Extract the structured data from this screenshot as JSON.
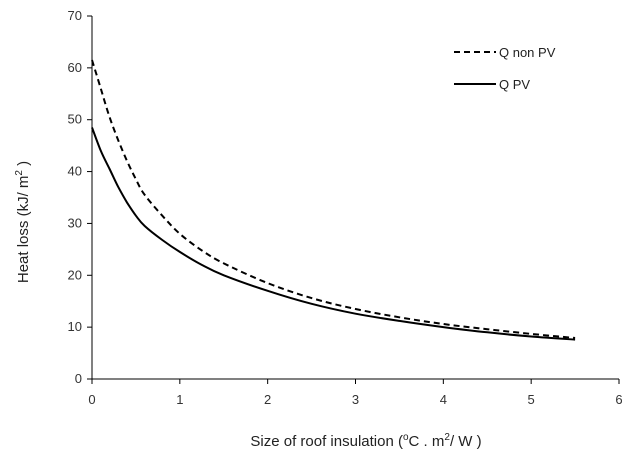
{
  "chart_data": {
    "type": "line",
    "title": "",
    "xlabel": "Size of roof insulation  (",
    "xlabel_sup": "o",
    "xlabel_mid": "C . m",
    "xlabel_sup2": "2",
    "xlabel_end": "/ W )",
    "ylabel": "Heat loss  (kJ/ m",
    "ylabel_sup": "2",
    "ylabel_end": " )",
    "xlim": [
      0,
      6
    ],
    "ylim": [
      0,
      70
    ],
    "xticks": [
      0,
      1,
      2,
      3,
      4,
      5,
      6
    ],
    "yticks": [
      0,
      10,
      20,
      30,
      40,
      50,
      60,
      70
    ],
    "grid": false,
    "legend_position": "top-right",
    "series": [
      {
        "name": "Q non PV",
        "line_style": "dashed",
        "color": "#000000",
        "x": [
          0,
          0.1,
          0.2,
          0.3,
          0.4,
          0.5,
          0.6,
          0.8,
          1.0,
          1.25,
          1.5,
          2.0,
          2.5,
          3.0,
          3.5,
          4.0,
          4.5,
          5.0,
          5.5
        ],
        "y": [
          61.5,
          56,
          50.5,
          46,
          42,
          38.5,
          35.5,
          31.5,
          28,
          24.8,
          22.3,
          18.5,
          15.6,
          13.5,
          11.9,
          10.6,
          9.6,
          8.7,
          7.9
        ]
      },
      {
        "name": "Q PV",
        "line_style": "solid",
        "color": "#000000",
        "x": [
          0,
          0.1,
          0.2,
          0.3,
          0.4,
          0.5,
          0.6,
          0.8,
          1.0,
          1.25,
          1.5,
          2.0,
          2.5,
          3.0,
          3.5,
          4.0,
          4.5,
          5.0,
          5.5
        ],
        "y": [
          48.5,
          44,
          40.5,
          37,
          34,
          31.5,
          29.5,
          26.8,
          24.5,
          22,
          20,
          17,
          14.5,
          12.6,
          11.2,
          10,
          9,
          8.2,
          7.6
        ]
      }
    ]
  }
}
